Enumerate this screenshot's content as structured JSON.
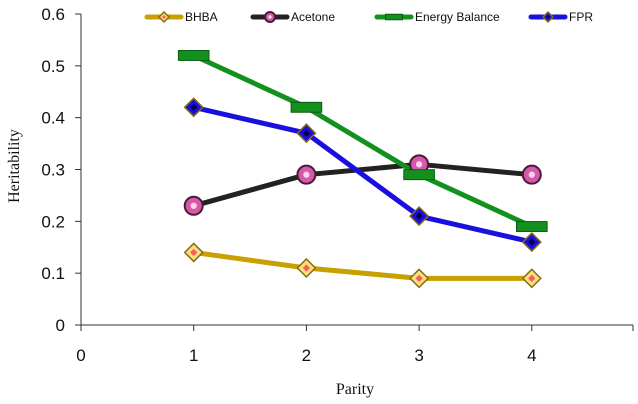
{
  "chart_data": {
    "type": "line",
    "xlabel": "Parity",
    "ylabel": "Heritability",
    "xlim": [
      0,
      4.5
    ],
    "ylim": [
      0,
      0.6
    ],
    "x_ticks": [
      "0",
      "1",
      "2",
      "3",
      "4"
    ],
    "y_ticks": [
      "0",
      "0.1",
      "0.2",
      "0.3",
      "0.4",
      "0.5",
      "0.6"
    ],
    "x": [
      1,
      2,
      3,
      4
    ],
    "grid": false,
    "legend_position": "top",
    "series": [
      {
        "name": "BHBA",
        "values": [
          0.14,
          0.11,
          0.09,
          0.09
        ],
        "color": "#c8a000",
        "marker": "diamond",
        "marker_fill": "#f6e080",
        "marker_center": "#ff5a5a"
      },
      {
        "name": "Acetone",
        "values": [
          0.23,
          0.29,
          0.31,
          0.29
        ],
        "color": "#222222",
        "marker": "circle",
        "marker_fill": "#d25aa8",
        "marker_center": "#ffd0ec"
      },
      {
        "name": "Energy Balance",
        "values": [
          0.52,
          0.42,
          0.29,
          0.19
        ],
        "color": "#14901e",
        "marker": "dash",
        "marker_fill": "#14901e",
        "marker_center": ""
      },
      {
        "name": "FPR",
        "values": [
          0.42,
          0.37,
          0.21,
          0.16
        ],
        "color": "#1a10dd",
        "marker": "diamond",
        "marker_fill": "#1a10dd",
        "marker_center": "#000055"
      }
    ]
  }
}
